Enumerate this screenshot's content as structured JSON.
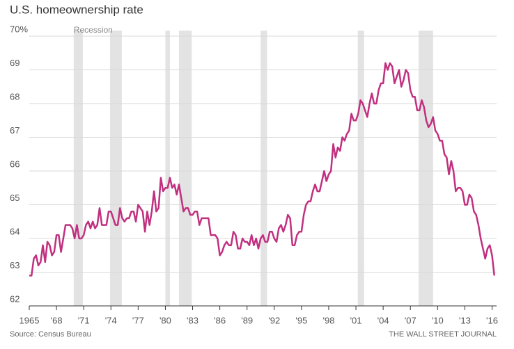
{
  "chart_data": {
    "type": "line",
    "title": "U.S. homeownership rate",
    "source": "Source: Census Bureau",
    "credit": "THE WALL STREET JOURNAL",
    "recession_label": "Recession",
    "recessions": [
      [
        1969.9,
        1970.9
      ],
      [
        1973.9,
        1975.2
      ],
      [
        1980.0,
        1980.5
      ],
      [
        1981.5,
        1982.9
      ],
      [
        1990.5,
        1991.2
      ],
      [
        2001.2,
        2001.9
      ],
      [
        2007.9,
        2009.5
      ]
    ],
    "xlim": [
      1965,
      2016.5
    ],
    "ylim": [
      62,
      70
    ],
    "xticks": [
      1965,
      {
        "value": 1968,
        "label": "'68"
      },
      {
        "value": 1971,
        "label": "'71"
      },
      {
        "value": 1974,
        "label": "'74"
      },
      {
        "value": 1977,
        "label": "'77"
      },
      {
        "value": 1980,
        "label": "'80"
      },
      {
        "value": 1983,
        "label": "'83"
      },
      {
        "value": 1986,
        "label": "'86"
      },
      {
        "value": 1989,
        "label": "'89"
      },
      {
        "value": 1992,
        "label": "'92"
      },
      {
        "value": 1995,
        "label": "'95"
      },
      {
        "value": 1998,
        "label": "'98"
      },
      {
        "value": 2001,
        "label": "'01"
      },
      {
        "value": 2004,
        "label": "'04"
      },
      {
        "value": 2007,
        "label": "'07"
      },
      {
        "value": 2010,
        "label": "'10"
      },
      {
        "value": 2013,
        "label": "'13"
      },
      {
        "value": 2016,
        "label": "'16"
      }
    ],
    "yticks": [
      62,
      63,
      64,
      65,
      66,
      67,
      68,
      69,
      {
        "value": 70,
        "label": "70%"
      }
    ],
    "grid": true,
    "x": [
      1965,
      1965.25,
      1965.5,
      1965.75,
      1966,
      1966.25,
      1966.5,
      1966.75,
      1967,
      1967.25,
      1967.5,
      1967.75,
      1968,
      1968.25,
      1968.5,
      1968.75,
      1969,
      1969.25,
      1969.5,
      1969.75,
      1970,
      1970.25,
      1970.5,
      1970.75,
      1971,
      1971.25,
      1971.5,
      1971.75,
      1972,
      1972.25,
      1972.5,
      1972.75,
      1973,
      1973.25,
      1973.5,
      1973.75,
      1974,
      1974.25,
      1974.5,
      1974.75,
      1975,
      1975.25,
      1975.5,
      1975.75,
      1976,
      1976.25,
      1976.5,
      1976.75,
      1977,
      1977.25,
      1977.5,
      1977.75,
      1978,
      1978.25,
      1978.5,
      1978.75,
      1979,
      1979.25,
      1979.5,
      1979.75,
      1980,
      1980.25,
      1980.5,
      1980.75,
      1981,
      1981.25,
      1981.5,
      1981.75,
      1982,
      1982.25,
      1982.5,
      1982.75,
      1983,
      1983.25,
      1983.5,
      1983.75,
      1984,
      1984.25,
      1984.5,
      1984.75,
      1985,
      1985.25,
      1985.5,
      1985.75,
      1986,
      1986.25,
      1986.5,
      1986.75,
      1987,
      1987.25,
      1987.5,
      1987.75,
      1988,
      1988.25,
      1988.5,
      1988.75,
      1989,
      1989.25,
      1989.5,
      1989.75,
      1990,
      1990.25,
      1990.5,
      1990.75,
      1991,
      1991.25,
      1991.5,
      1991.75,
      1992,
      1992.25,
      1992.5,
      1992.75,
      1993,
      1993.25,
      1993.5,
      1993.75,
      1994,
      1994.25,
      1994.5,
      1994.75,
      1995,
      1995.25,
      1995.5,
      1995.75,
      1996,
      1996.25,
      1996.5,
      1996.75,
      1997,
      1997.25,
      1997.5,
      1997.75,
      1998,
      1998.25,
      1998.5,
      1998.75,
      1999,
      1999.25,
      1999.5,
      1999.75,
      2000,
      2000.25,
      2000.5,
      2000.75,
      2001,
      2001.25,
      2001.5,
      2001.75,
      2002,
      2002.25,
      2002.5,
      2002.75,
      2003,
      2003.25,
      2003.5,
      2003.75,
      2004,
      2004.25,
      2004.5,
      2004.75,
      2005,
      2005.25,
      2005.5,
      2005.75,
      2006,
      2006.25,
      2006.5,
      2006.75,
      2007,
      2007.25,
      2007.5,
      2007.75,
      2008,
      2008.25,
      2008.5,
      2008.75,
      2009,
      2009.25,
      2009.5,
      2009.75,
      2010,
      2010.25,
      2010.5,
      2010.75,
      2011,
      2011.25,
      2011.5,
      2011.75,
      2012,
      2012.25,
      2012.5,
      2012.75,
      2013,
      2013.25,
      2013.5,
      2013.75,
      2014,
      2014.25,
      2014.5,
      2014.75,
      2015,
      2015.25,
      2015.5,
      2015.75,
      2016,
      2016.25
    ],
    "series": [
      {
        "name": "Homeownership rate",
        "color": "#c1307f",
        "values": [
          62.9,
          62.9,
          63.4,
          63.5,
          63.2,
          63.3,
          63.8,
          63.3,
          63.9,
          63.8,
          63.5,
          63.6,
          64.1,
          64.1,
          63.6,
          64.0,
          64.4,
          64.4,
          64.4,
          64.3,
          64.0,
          64.4,
          64.0,
          64.0,
          64.1,
          64.4,
          64.5,
          64.3,
          64.5,
          64.3,
          64.4,
          64.9,
          64.4,
          64.4,
          64.4,
          64.8,
          64.8,
          64.6,
          64.4,
          64.4,
          64.9,
          64.6,
          64.5,
          64.6,
          64.6,
          64.8,
          64.8,
          64.5,
          65.0,
          64.9,
          64.8,
          64.2,
          64.8,
          64.4,
          64.8,
          65.4,
          64.8,
          64.9,
          65.8,
          65.4,
          65.5,
          65.5,
          65.8,
          65.5,
          65.6,
          65.3,
          65.6,
          65.2,
          64.8,
          64.9,
          64.9,
          64.7,
          64.7,
          64.8,
          64.8,
          64.4,
          64.6,
          64.6,
          64.6,
          64.6,
          64.1,
          64.1,
          64.1,
          64.0,
          63.5,
          63.6,
          63.8,
          63.9,
          63.8,
          63.8,
          64.2,
          64.1,
          63.7,
          63.7,
          64.0,
          63.9,
          63.9,
          63.8,
          64.1,
          63.8,
          64.0,
          63.7,
          64.0,
          64.1,
          63.9,
          63.9,
          64.2,
          64.2,
          64.0,
          63.9,
          64.3,
          64.4,
          64.2,
          64.4,
          64.7,
          64.6,
          63.8,
          63.8,
          64.1,
          64.2,
          64.2,
          64.7,
          65.0,
          65.1,
          65.1,
          65.4,
          65.6,
          65.4,
          65.4,
          65.7,
          66.0,
          65.7,
          65.9,
          66.0,
          66.8,
          66.4,
          66.7,
          66.6,
          67.0,
          66.9,
          67.1,
          67.2,
          67.7,
          67.5,
          67.5,
          67.7,
          68.1,
          68.0,
          67.8,
          67.6,
          68.0,
          68.3,
          68.0,
          68.0,
          68.4,
          68.6,
          68.6,
          69.2,
          69.0,
          69.2,
          69.1,
          68.6,
          68.8,
          69.0,
          68.5,
          68.7,
          69.0,
          68.9,
          68.4,
          68.2,
          68.2,
          67.8,
          67.8,
          68.1,
          67.9,
          67.5,
          67.3,
          67.4,
          67.6,
          67.2,
          67.1,
          66.9,
          66.9,
          66.5,
          66.4,
          65.9,
          66.3,
          66.0,
          65.4,
          65.5,
          65.5,
          65.4,
          65.0,
          65.0,
          65.3,
          65.2,
          64.8,
          64.7,
          64.4,
          64.0,
          63.7,
          63.4,
          63.7,
          63.8,
          63.5,
          62.9
        ]
      }
    ]
  }
}
